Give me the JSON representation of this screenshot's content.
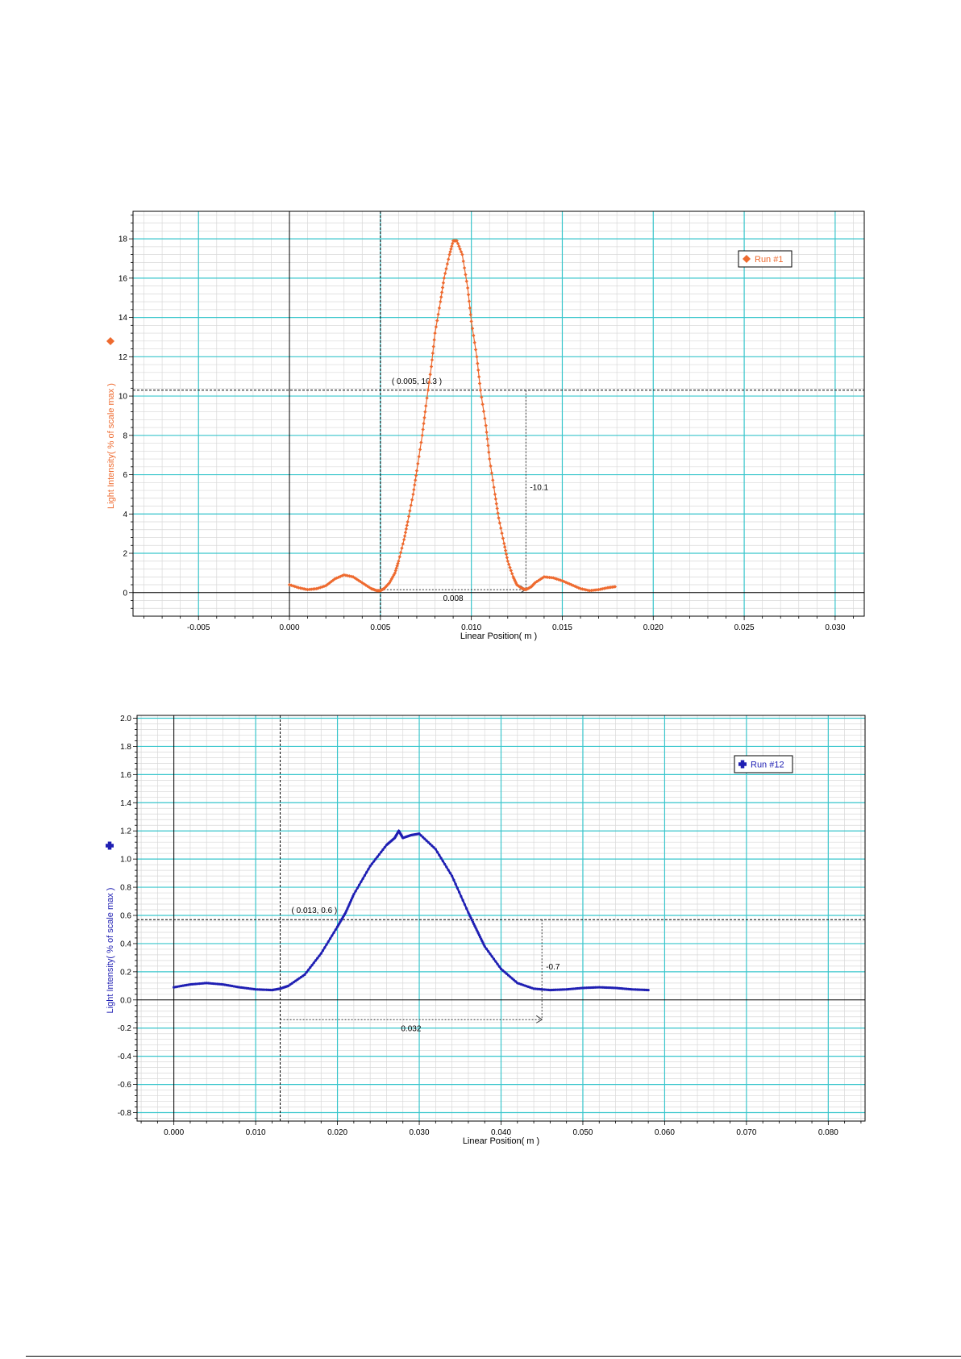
{
  "colors": {
    "run1": "#ee6a2f",
    "run12": "#1f1fb3",
    "major_grid": "#39c6cc",
    "minor_grid": "#d8d8d8"
  },
  "chart_data": [
    {
      "type": "line",
      "xlabel": "Linear Position( m )",
      "ylabel": "Light Intensity( % of scale max )",
      "xlim": [
        -0.0086,
        0.0316
      ],
      "ylim": [
        -1.2,
        19.4
      ],
      "x_major_ticks": [
        -0.005,
        0,
        0.005,
        0.01,
        0.015,
        0.02,
        0.025,
        0.03
      ],
      "x_tick_labels": [
        "-0.005",
        "0.000",
        "0.005",
        "0.010",
        "0.015",
        "0.020",
        "0.025",
        "0.030"
      ],
      "y_major_ticks": [
        0,
        2,
        4,
        6,
        8,
        10,
        12,
        14,
        16,
        18
      ],
      "y_tick_labels": [
        "0",
        "2",
        "4",
        "6",
        "8",
        "10",
        "12",
        "14",
        "16",
        "18"
      ],
      "x_minor_step": 0.001,
      "y_minor_step": 0.4,
      "grid": true,
      "legend_position": "top-right",
      "marker": "diamond",
      "series": [
        {
          "name": "Run #1",
          "x": [
            0.0,
            0.0005,
            0.001,
            0.0015,
            0.002,
            0.0025,
            0.003,
            0.0035,
            0.004,
            0.0045,
            0.0048,
            0.005,
            0.0052,
            0.0055,
            0.0058,
            0.006,
            0.0063,
            0.0065,
            0.0068,
            0.007,
            0.0073,
            0.0075,
            0.0078,
            0.008,
            0.0083,
            0.0085,
            0.0088,
            0.009,
            0.0092,
            0.0095,
            0.0098,
            0.01,
            0.0103,
            0.0105,
            0.0108,
            0.011,
            0.0113,
            0.0115,
            0.0118,
            0.012,
            0.0123,
            0.0125,
            0.0128,
            0.013,
            0.0133,
            0.0135,
            0.014,
            0.0145,
            0.015,
            0.0155,
            0.016,
            0.0165,
            0.017,
            0.0175,
            0.0179
          ],
          "y": [
            0.4,
            0.25,
            0.15,
            0.2,
            0.35,
            0.7,
            0.9,
            0.8,
            0.5,
            0.2,
            0.1,
            0.1,
            0.2,
            0.5,
            1.0,
            1.6,
            2.7,
            3.6,
            5.0,
            6.2,
            8.0,
            9.5,
            11.5,
            13.2,
            14.8,
            16.0,
            17.2,
            17.9,
            17.9,
            17.2,
            15.5,
            13.8,
            12.0,
            10.3,
            8.5,
            6.8,
            5.0,
            3.8,
            2.5,
            1.6,
            0.8,
            0.4,
            0.2,
            0.15,
            0.3,
            0.5,
            0.8,
            0.75,
            0.6,
            0.4,
            0.2,
            0.1,
            0.15,
            0.25,
            0.3
          ]
        }
      ],
      "crosshair": {
        "x": 0.005,
        "y": 10.3,
        "label": "( 0.005, 10.3 )"
      },
      "delta_point": {
        "x": 0.013,
        "y": 0.15
      },
      "delta_x_label": "0.008",
      "delta_y_label": "-10.1"
    },
    {
      "type": "line",
      "xlabel": "Linear Position( m )",
      "ylabel": "Light Intensity( % of scale max )",
      "xlim": [
        -0.0045,
        0.0845
      ],
      "ylim": [
        -0.86,
        2.02
      ],
      "x_major_ticks": [
        0,
        0.01,
        0.02,
        0.03,
        0.04,
        0.05,
        0.06,
        0.07,
        0.08
      ],
      "x_tick_labels": [
        "0.000",
        "0.010",
        "0.020",
        "0.030",
        "0.040",
        "0.050",
        "0.060",
        "0.070",
        "0.080"
      ],
      "y_major_ticks": [
        -0.8,
        -0.6,
        -0.4,
        -0.2,
        0,
        0.2,
        0.4,
        0.6,
        0.8,
        1.0,
        1.2,
        1.4,
        1.6,
        1.8,
        2.0
      ],
      "y_tick_labels": [
        "-0.8",
        "-0.6",
        "-0.4",
        "-0.2",
        "0.0",
        "0.2",
        "0.4",
        "0.6",
        "0.8",
        "1.0",
        "1.2",
        "1.4",
        "1.6",
        "1.8",
        "2.0"
      ],
      "x_minor_step": 0.002,
      "y_minor_step": 0.04,
      "grid": true,
      "legend_position": "top-right",
      "marker": "plus",
      "series": [
        {
          "name": "Run #12",
          "x": [
            0.0,
            0.002,
            0.004,
            0.006,
            0.008,
            0.01,
            0.012,
            0.013,
            0.014,
            0.016,
            0.018,
            0.02,
            0.021,
            0.022,
            0.024,
            0.026,
            0.027,
            0.0275,
            0.028,
            0.029,
            0.03,
            0.032,
            0.034,
            0.036,
            0.037,
            0.038,
            0.04,
            0.042,
            0.044,
            0.046,
            0.048,
            0.05,
            0.052,
            0.054,
            0.056,
            0.058
          ],
          "y": [
            0.09,
            0.11,
            0.12,
            0.11,
            0.09,
            0.075,
            0.07,
            0.08,
            0.1,
            0.18,
            0.33,
            0.52,
            0.62,
            0.75,
            0.95,
            1.1,
            1.15,
            1.2,
            1.15,
            1.17,
            1.18,
            1.07,
            0.88,
            0.62,
            0.5,
            0.38,
            0.22,
            0.12,
            0.08,
            0.07,
            0.075,
            0.085,
            0.09,
            0.085,
            0.075,
            0.07
          ]
        }
      ],
      "crosshair": {
        "x": 0.013,
        "y": 0.57,
        "label": "( 0.013, 0.6 )"
      },
      "delta_point": {
        "x": 0.045,
        "y": -0.14
      },
      "delta_x_label": "0.032",
      "delta_y_label": "-0.7"
    }
  ]
}
